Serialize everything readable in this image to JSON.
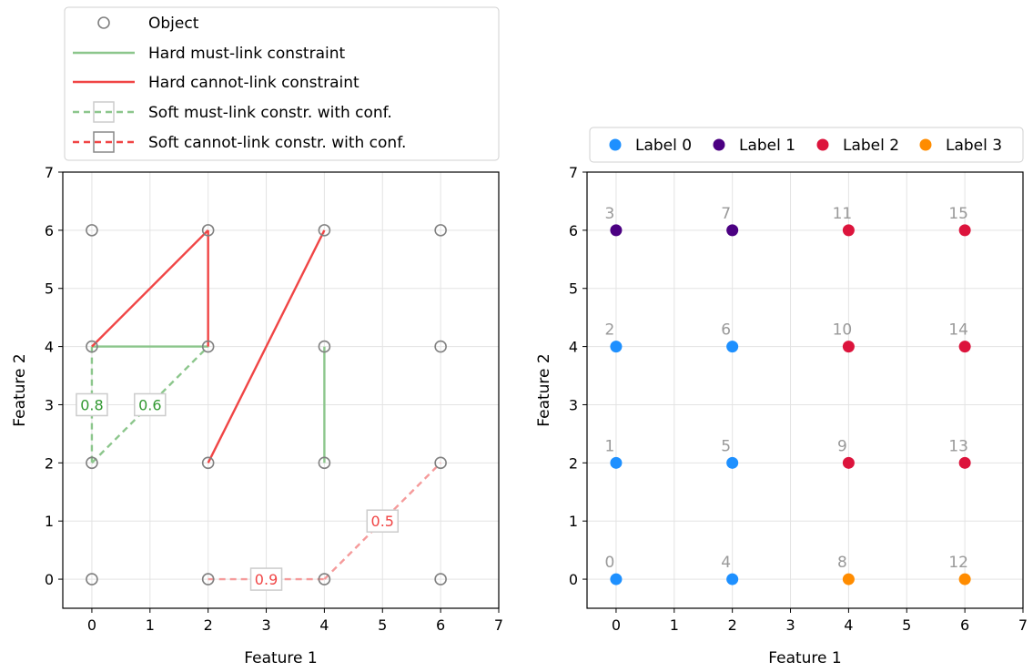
{
  "chart_data": [
    {
      "type": "scatter",
      "xlabel": "Feature 1",
      "ylabel": "Feature 2",
      "xlim": [
        -0.5,
        7
      ],
      "ylim": [
        -0.5,
        7
      ],
      "xticks": [
        "0",
        "1",
        "2",
        "3",
        "4",
        "5",
        "6",
        "7"
      ],
      "yticks": [
        "0",
        "1",
        "2",
        "3",
        "4",
        "5",
        "6",
        "7"
      ],
      "grid": true,
      "legend_position": "above",
      "legend": [
        "Object",
        "Hard must-link constraint",
        "Hard cannot-link constraint",
        "Soft must-link constr. with conf.",
        "Soft cannot-link constr. with conf."
      ],
      "points": [
        [
          0,
          0
        ],
        [
          0,
          2
        ],
        [
          0,
          4
        ],
        [
          0,
          6
        ],
        [
          2,
          0
        ],
        [
          2,
          2
        ],
        [
          2,
          4
        ],
        [
          2,
          6
        ],
        [
          4,
          0
        ],
        [
          4,
          2
        ],
        [
          4,
          4
        ],
        [
          4,
          6
        ],
        [
          6,
          0
        ],
        [
          6,
          2
        ],
        [
          6,
          4
        ],
        [
          6,
          6
        ]
      ],
      "hard_must_link": [
        {
          "from": [
            0,
            4
          ],
          "to": [
            2,
            4
          ]
        },
        {
          "from": [
            4,
            4
          ],
          "to": [
            4,
            2
          ]
        }
      ],
      "hard_cannot_link": [
        {
          "from": [
            0,
            4
          ],
          "to": [
            2,
            6
          ]
        },
        {
          "from": [
            2,
            6
          ],
          "to": [
            2,
            4
          ]
        },
        {
          "from": [
            2,
            2
          ],
          "to": [
            4,
            6
          ]
        }
      ],
      "soft_must_link": [
        {
          "from": [
            0,
            4
          ],
          "to": [
            0,
            2
          ],
          "confidence": "0.8"
        },
        {
          "from": [
            0,
            2
          ],
          "to": [
            2,
            4
          ],
          "confidence": "0.6"
        }
      ],
      "soft_cannot_link": [
        {
          "from": [
            2,
            0
          ],
          "to": [
            4,
            0
          ],
          "confidence": "0.9"
        },
        {
          "from": [
            4,
            0
          ],
          "to": [
            6,
            2
          ],
          "confidence": "0.5"
        }
      ],
      "colors": {
        "object": "#808080",
        "must_link": "#8cc68c",
        "cannot_link": "#f04545",
        "soft_must_link": "#8cc68c",
        "soft_cannot_link": "#f59a9a",
        "must_conf_text": "#339933",
        "cannot_conf_text": "#f04545"
      }
    },
    {
      "type": "scatter",
      "xlabel": "Feature 1",
      "ylabel": "Feature 2",
      "xlim": [
        -0.5,
        7
      ],
      "ylim": [
        -0.5,
        7
      ],
      "xticks": [
        "0",
        "1",
        "2",
        "3",
        "4",
        "5",
        "6",
        "7"
      ],
      "yticks": [
        "0",
        "1",
        "2",
        "3",
        "4",
        "5",
        "6",
        "7"
      ],
      "grid": true,
      "legend_position": "above",
      "legend": [
        {
          "name": "Label 0",
          "color": "#1e90ff"
        },
        {
          "name": "Label 1",
          "color": "#4b0082"
        },
        {
          "name": "Label 2",
          "color": "#dc143c"
        },
        {
          "name": "Label 3",
          "color": "#ff8c00"
        }
      ],
      "points": [
        {
          "id": "0",
          "x": 0,
          "y": 0,
          "label": 0
        },
        {
          "id": "1",
          "x": 0,
          "y": 2,
          "label": 0
        },
        {
          "id": "2",
          "x": 0,
          "y": 4,
          "label": 0
        },
        {
          "id": "3",
          "x": 0,
          "y": 6,
          "label": 1
        },
        {
          "id": "4",
          "x": 2,
          "y": 0,
          "label": 0
        },
        {
          "id": "5",
          "x": 2,
          "y": 2,
          "label": 0
        },
        {
          "id": "6",
          "x": 2,
          "y": 4,
          "label": 0
        },
        {
          "id": "7",
          "x": 2,
          "y": 6,
          "label": 1
        },
        {
          "id": "8",
          "x": 4,
          "y": 0,
          "label": 3
        },
        {
          "id": "9",
          "x": 4,
          "y": 2,
          "label": 2
        },
        {
          "id": "10",
          "x": 4,
          "y": 4,
          "label": 2
        },
        {
          "id": "11",
          "x": 4,
          "y": 6,
          "label": 2
        },
        {
          "id": "12",
          "x": 6,
          "y": 0,
          "label": 3
        },
        {
          "id": "13",
          "x": 6,
          "y": 2,
          "label": 2
        },
        {
          "id": "14",
          "x": 6,
          "y": 4,
          "label": 2
        },
        {
          "id": "15",
          "x": 6,
          "y": 6,
          "label": 2
        }
      ]
    }
  ]
}
